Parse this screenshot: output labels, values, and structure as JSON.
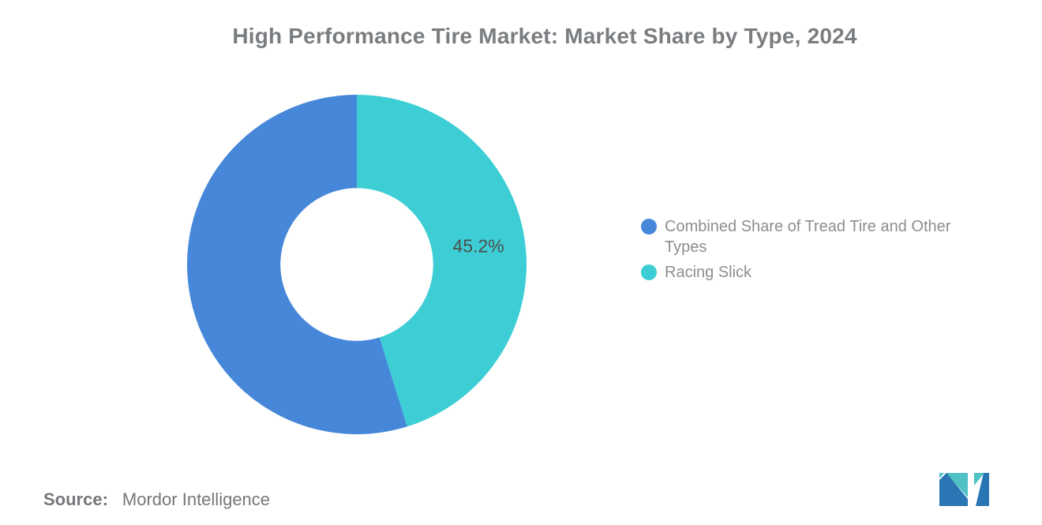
{
  "title": "High Performance Tire Market: Market Share by Type, 2024",
  "chart_data": {
    "type": "pie",
    "subtype": "donut",
    "title": "High Performance Tire Market: Market Share by Type, 2024",
    "unit": "percent",
    "start_angle": "12-o-clock",
    "direction": "clockwise",
    "inner_radius_ratio": 0.45,
    "legend_position": "right",
    "slices": [
      {
        "name": "Racing Slick",
        "value": 45.2,
        "color": "#3dced5",
        "data_label": "45.2%"
      },
      {
        "name": "Combined Share of Tread Tire and Other Types",
        "value": 54.8,
        "color": "#4687da",
        "data_label": ""
      }
    ]
  },
  "legend": {
    "items": [
      {
        "label": "Combined Share of Tread Tire and Other Types",
        "color": "#4687da"
      },
      {
        "label": "Racing Slick",
        "color": "#3dced5"
      }
    ]
  },
  "data_label": {
    "text": "45.2%",
    "color": "#4d4d4d"
  },
  "source": {
    "prefix": "Source:",
    "text": "Mordor Intelligence"
  },
  "logo": {
    "name": "mordor-intelligence-logo",
    "teal": "#4fc1c5",
    "blue": "#2a76b4"
  }
}
